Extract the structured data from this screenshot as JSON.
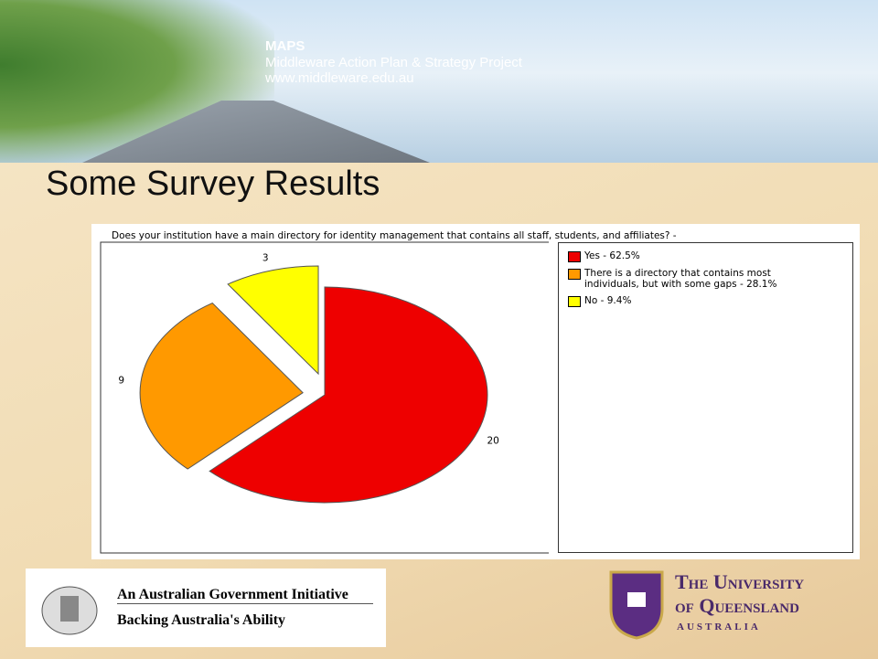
{
  "header": {
    "title": "MAPS",
    "subtitle": "Middleware Action Plan & Strategy Project",
    "url": "www.middleware.edu.au"
  },
  "slide_title": "Some Survey Results",
  "chart_data": {
    "type": "pie",
    "title": "Does your institution have a main directory for identity management that contains all staff, students, and affiliates? -",
    "categories": [
      "Yes - 62.5%",
      "There is a directory that contains most individuals, but with some gaps - 28.1%",
      "No - 9.4%"
    ],
    "values": [
      20,
      9,
      3
    ],
    "colors": [
      "#ee0000",
      "#ff9900",
      "#ffff00"
    ],
    "exploded": [
      false,
      true,
      true
    ],
    "legend": "right"
  },
  "footer": {
    "left": {
      "line1": "An Australian Government Initiative",
      "line2": "Backing Australia's Ability"
    },
    "right": {
      "line1": "The University",
      "line2": "of Queensland",
      "line3": "AUSTRALIA"
    }
  }
}
